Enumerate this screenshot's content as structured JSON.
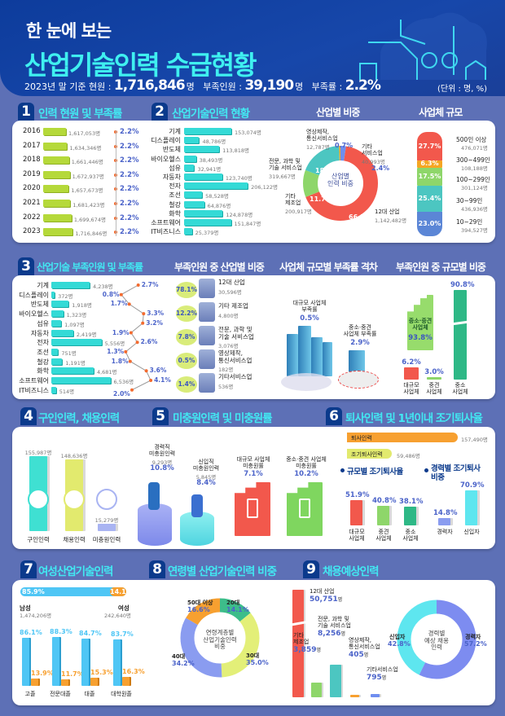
{
  "header": {
    "subtitle": "한 눈에 보는",
    "title": "산업기술인력 수급현황",
    "stat1_label": "2023년 말 기준 현원 : ",
    "stat1_value": "1,716,846",
    "stat1_unit": "명",
    "stat2_label": "부족인원 : ",
    "stat2_value": "39,190",
    "stat2_unit": "명",
    "stat3_label": "부족률 : ",
    "stat3_value": "2.2%",
    "unit_note": "(단위 : 명, %)"
  },
  "colors": {
    "header": "#0d3c9c",
    "background": "#5d70b6",
    "title_cyan": "#42e8f2",
    "badge": "#0b3a8c",
    "pct_blue": "#4b63c9"
  },
  "s1": {
    "num": "1",
    "title": "인력 현원 및 부족률",
    "rows": [
      {
        "year": "2016",
        "value": 1617053,
        "label": "1,617,053명",
        "rate": "2.2%"
      },
      {
        "year": "2017",
        "value": 1634346,
        "label": "1,634,346명",
        "rate": "2.2%"
      },
      {
        "year": "2018",
        "value": 1661446,
        "label": "1,661,446명",
        "rate": "2.2%"
      },
      {
        "year": "2019",
        "value": 1672937,
        "label": "1,672,937명",
        "rate": "2.2%"
      },
      {
        "year": "2020",
        "value": 1657673,
        "label": "1,657,673명",
        "rate": "2.2%"
      },
      {
        "year": "2021",
        "value": 1681423,
        "label": "1,681,423명",
        "rate": "2.2%"
      },
      {
        "year": "2022",
        "value": 1699674,
        "label": "1,699,674명",
        "rate": "2.2%"
      },
      {
        "year": "2023",
        "value": 1716846,
        "label": "1,716,846명",
        "rate": "2.2%"
      }
    ]
  },
  "s2": {
    "num": "2",
    "title": "산업기술인력 현황",
    "rows": [
      {
        "name": "기계",
        "value": 153074,
        "label": "153,074명"
      },
      {
        "name": "디스플레이",
        "value": 48786,
        "label": "48,786명"
      },
      {
        "name": "반도체",
        "value": 113818,
        "label": "113,818명"
      },
      {
        "name": "바이오헬스",
        "value": 38493,
        "label": "38,493명"
      },
      {
        "name": "섬유",
        "value": 32941,
        "label": "32,941명"
      },
      {
        "name": "자동차",
        "value": 123740,
        "label": "123,740명"
      },
      {
        "name": "전자",
        "value": 206122,
        "label": "206,122명"
      },
      {
        "name": "조선",
        "value": 58528,
        "label": "58,528명"
      },
      {
        "name": "철강",
        "value": 64876,
        "label": "64,876명"
      },
      {
        "name": "화학",
        "value": 124878,
        "label": "124,878명"
      },
      {
        "name": "소프트웨어",
        "value": 151847,
        "label": "151,847명"
      },
      {
        "name": "IT비즈니스",
        "value": 25379,
        "label": "25,379명"
      }
    ],
    "share_title": "산업별 비중",
    "share_center": "산업별\n인력 비중",
    "share": [
      {
        "name": "기타\n서비스업",
        "count": "40,993명",
        "pct": 2.4,
        "pct_label": "2.4%",
        "color": "#6f8ef0"
      },
      {
        "name": "12대 산업",
        "count": "1,142,482명",
        "pct": 66.5,
        "pct_label": "66.5%",
        "color": "#f2584c"
      },
      {
        "name": "기타\n제조업",
        "count": "200,917명",
        "pct": 11.7,
        "pct_label": "11.7%",
        "color": "#8ed66a"
      },
      {
        "name": "전문, 과학 및\n기술 서비스업",
        "count": "319,667명",
        "pct": 18.6,
        "pct_label": "18.6%",
        "color": "#4cc6c1"
      },
      {
        "name": "영상제작,\n통신서비스업",
        "count": "12,787명",
        "pct": 0.7,
        "pct_label": "0.7%",
        "color": "#f5a623"
      }
    ],
    "size_title": "사업체 규모",
    "sizes": [
      {
        "name": "500인 이상",
        "count": "476,071명",
        "pct": 27.7,
        "pct_label": "27.7%",
        "color": "#f2584c"
      },
      {
        "name": "300~499인",
        "count": "108,188명",
        "pct": 6.3,
        "pct_label": "6.3%",
        "color": "#f5a623"
      },
      {
        "name": "100~299인",
        "count": "301,124명",
        "pct": 17.5,
        "pct_label": "17.5%",
        "color": "#8ed66a"
      },
      {
        "name": "30~99인",
        "count": "436,936명",
        "pct": 25.4,
        "pct_label": "25.4%",
        "color": "#4cc6c1"
      },
      {
        "name": "10~29인",
        "count": "394,527명",
        "pct": 23.0,
        "pct_label": "23.0%",
        "color": "#5b86d6"
      }
    ]
  },
  "s3": {
    "num": "3",
    "title": "산업기술 부족인원 및 부족률",
    "rows": [
      {
        "name": "기계",
        "value": 4238,
        "label": "4,238명",
        "rate": 2.7,
        "rate_label": "2.7%"
      },
      {
        "name": "디스플레이",
        "value": 372,
        "label": "372명",
        "rate": 0.8,
        "rate_label": "0.8%"
      },
      {
        "name": "반도체",
        "value": 1918,
        "label": "1,918명",
        "rate": 1.7,
        "rate_label": "1.7%"
      },
      {
        "name": "바이오헬스",
        "value": 1323,
        "label": "1,323명",
        "rate": 3.3,
        "rate_label": "3.3%"
      },
      {
        "name": "섬유",
        "value": 1097,
        "label": "1,097명",
        "rate": 3.2,
        "rate_label": "3.2%"
      },
      {
        "name": "자동차",
        "value": 2419,
        "label": "2,419명",
        "rate": 1.9,
        "rate_label": "1.9%"
      },
      {
        "name": "전자",
        "value": 5556,
        "label": "5,556명",
        "rate": 2.6,
        "rate_label": "2.6%"
      },
      {
        "name": "조선",
        "value": 751,
        "label": "751명",
        "rate": 1.3,
        "rate_label": "1.3%"
      },
      {
        "name": "철강",
        "value": 1191,
        "label": "1,191명",
        "rate": 1.8,
        "rate_label": "1.8%"
      },
      {
        "name": "화학",
        "value": 4681,
        "label": "4,681명",
        "rate": 3.6,
        "rate_label": "3.6%"
      },
      {
        "name": "소프트웨어",
        "value": 6536,
        "label": "6,536명",
        "rate": 4.1,
        "rate_label": "4.1%"
      },
      {
        "name": "IT비즈니스",
        "value": 514,
        "label": "514명",
        "rate": 2.0,
        "rate_label": "2.0%"
      }
    ],
    "ind_title": "부족인원 중 산업별 비중",
    "ind": [
      {
        "pct": "78.1%",
        "name": "12대 산업",
        "count": "30,596명"
      },
      {
        "pct": "12.2%",
        "name": "기타 제조업",
        "count": "4,800명"
      },
      {
        "pct": "7.8%",
        "name": "전문, 과학 및\n기술 서비스업",
        "count": "3,076명"
      },
      {
        "pct": "0.5%",
        "name": "영상제작,\n통신서비스업",
        "count": "182명"
      },
      {
        "pct": "1.4%",
        "name": "기타서비스업",
        "count": "536명"
      }
    ],
    "gap_title": "사업체 규모별 부족률 격차",
    "gap_large_label": "대규모 사업체\n부족률",
    "gap_large_pct": "0.5%",
    "gap_small_label": "중소·중견\n사업체 부족률",
    "gap_small_pct": "2.9%",
    "share_title": "부족인원 중 규모별 비중",
    "share_group_label": "중소·중견\n사업체",
    "share_group_pct": "93.8%",
    "share": [
      {
        "name": "대규모\n사업체",
        "pct": 6.2,
        "pct_label": "6.2%",
        "color": "#f2584c"
      },
      {
        "name": "중견\n사업체",
        "pct": 3.0,
        "pct_label": "3.0%",
        "color": "#8ed66a"
      },
      {
        "name": "중소\n사업체",
        "pct": 90.8,
        "pct_label": "90.8%",
        "color": "#2eb886"
      }
    ]
  },
  "s4": {
    "num": "4",
    "title": "구인인력, 채용인력",
    "bars": [
      {
        "name": "구인인력",
        "value": 155987,
        "label": "155,987명",
        "color": "#3fe0d2"
      },
      {
        "name": "채용인력",
        "value": 148636,
        "label": "148,636명",
        "color": "#e2ea6e"
      },
      {
        "name": "미충원인력",
        "value": 15279,
        "label": "15,279명",
        "color": "#a9b4f2"
      }
    ]
  },
  "s5": {
    "num": "5",
    "title": "미충원인력 및 미충원률",
    "items": [
      {
        "name": "경력직\n미충원인력",
        "count": "9,293명",
        "pct": "10.8%"
      },
      {
        "name": "신입직\n미충원인력",
        "count": "5,845명",
        "pct": "8.4%"
      },
      {
        "name": "대규모 사업체\n미충원률",
        "pct": "7.1%"
      },
      {
        "name": "중소·중견 사업체\n미충원률",
        "pct": "10.2%"
      }
    ]
  },
  "s6": {
    "num": "6",
    "title": "퇴사인력 및 1년이내 조기퇴사율",
    "resign": {
      "name": "퇴사인력",
      "value": 157490,
      "label": "157,490명"
    },
    "early": {
      "name": "조기퇴사인력",
      "value": 59486,
      "label": "59,486명"
    },
    "size_title": "규모별 조기퇴사율",
    "career_title": "경력별 조기퇴사\n비중",
    "size": [
      {
        "name": "대규모\n사업체",
        "pct": 51.9,
        "pct_label": "51.9%",
        "color": "#f2584c"
      },
      {
        "name": "중견\n사업체",
        "pct": 40.8,
        "pct_label": "40.8%",
        "color": "#8ed66a"
      },
      {
        "name": "중소\n사업체",
        "pct": 38.1,
        "pct_label": "38.1%",
        "color": "#2eb886"
      }
    ],
    "career": [
      {
        "name": "경력자",
        "pct": 14.8,
        "pct_label": "14.8%",
        "color": "#8a9cf0"
      },
      {
        "name": "신입자",
        "pct": 70.9,
        "pct_label": "70.9%",
        "color": "#5ee6ef"
      }
    ]
  },
  "s7": {
    "num": "7",
    "title": "여성산업기술인력",
    "male": {
      "name": "남성",
      "count": "1,474,206명",
      "pct": 85.9,
      "pct_label": "85.9%"
    },
    "female": {
      "name": "여성",
      "count": "242,640명",
      "pct": 14.1,
      "pct_label": "14.1%"
    },
    "edu": [
      {
        "name": "고졸",
        "male": 86.1,
        "male_label": "86.1%",
        "female": 13.9,
        "female_label": "13.9%"
      },
      {
        "name": "전문대졸",
        "male": 88.3,
        "male_label": "88.3%",
        "female": 11.7,
        "female_label": "11.7%"
      },
      {
        "name": "대졸",
        "male": 84.7,
        "male_label": "84.7%",
        "female": 15.3,
        "female_label": "15.3%"
      },
      {
        "name": "대학원졸",
        "male": 83.7,
        "male_label": "83.7%",
        "female": 16.3,
        "female_label": "16.3%"
      }
    ]
  },
  "s8": {
    "num": "8",
    "title": "연령별 산업기술인력 비중",
    "center": "연령계층별\n산업기술인력\n비중",
    "ages": [
      {
        "name": "20대",
        "pct": 14.1,
        "pct_label": "14.1%",
        "color": "#3dbd8a"
      },
      {
        "name": "30대",
        "pct": 35.0,
        "pct_label": "35.0%",
        "color": "#e3ef78"
      },
      {
        "name": "40대",
        "pct": 34.2,
        "pct_label": "34.2%",
        "color": "#8a9cf0"
      },
      {
        "name": "50대 이상",
        "pct": 16.6,
        "pct_label": "16.6%",
        "color": "#f7a030"
      }
    ]
  },
  "s9": {
    "num": "9",
    "title": "채용예상인력",
    "bars": [
      {
        "name": "12대 산업",
        "value": 50751,
        "label": "50,751",
        "unit": "명",
        "color": "#f2584c"
      },
      {
        "name": "기타\n제조업",
        "value": 3859,
        "label": "3,859",
        "unit": "명",
        "color": "#8ed66a"
      },
      {
        "name": "전문, 과학 및\n기술 서비스업",
        "value": 8256,
        "label": "8,256",
        "unit": "명",
        "color": "#4cc6c1"
      },
      {
        "name": "영상제작,\n통신서비스업",
        "value": 405,
        "label": "405",
        "unit": "명",
        "color": "#f7a030"
      },
      {
        "name": "기타서비스업",
        "value": 795,
        "label": "795",
        "unit": "명",
        "color": "#6f8ef0"
      }
    ],
    "center": "경력별\n예상 채용\n인력",
    "career": [
      {
        "name": "경력자",
        "pct": 57.2,
        "pct_label": "57.2%",
        "color": "#7d8cf0"
      },
      {
        "name": "신입자",
        "pct": 42.8,
        "pct_label": "42.8%",
        "color": "#5ee6ef"
      }
    ]
  }
}
